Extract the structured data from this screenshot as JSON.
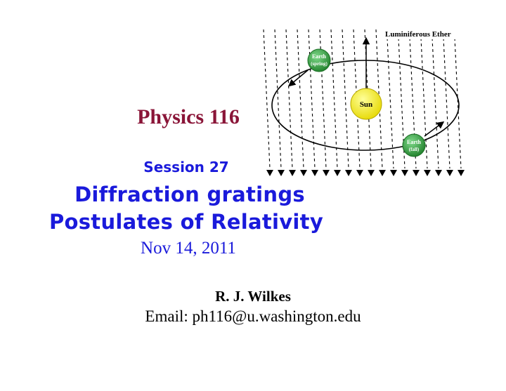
{
  "slide": {
    "course_title": "Physics 116",
    "session": "Session 27",
    "topics": [
      "Diffraction gratings",
      "Postulates of Relativity"
    ],
    "date": "Nov 14, 2011",
    "author": "R. J. Wilkes",
    "email": "Email: ph116@u.washington.edu"
  },
  "diagram": {
    "title": "Luminiferous Ether",
    "sun_label": "Sun",
    "earth_spring": [
      "Earth",
      "(spring)"
    ],
    "earth_fall": [
      "Earth",
      "(fall)"
    ]
  },
  "colors": {
    "title_red": "#8a1538",
    "body_blue": "#1a1adb",
    "sun_yellow": "#f2e600",
    "earth_green": "#2e9a3a"
  }
}
